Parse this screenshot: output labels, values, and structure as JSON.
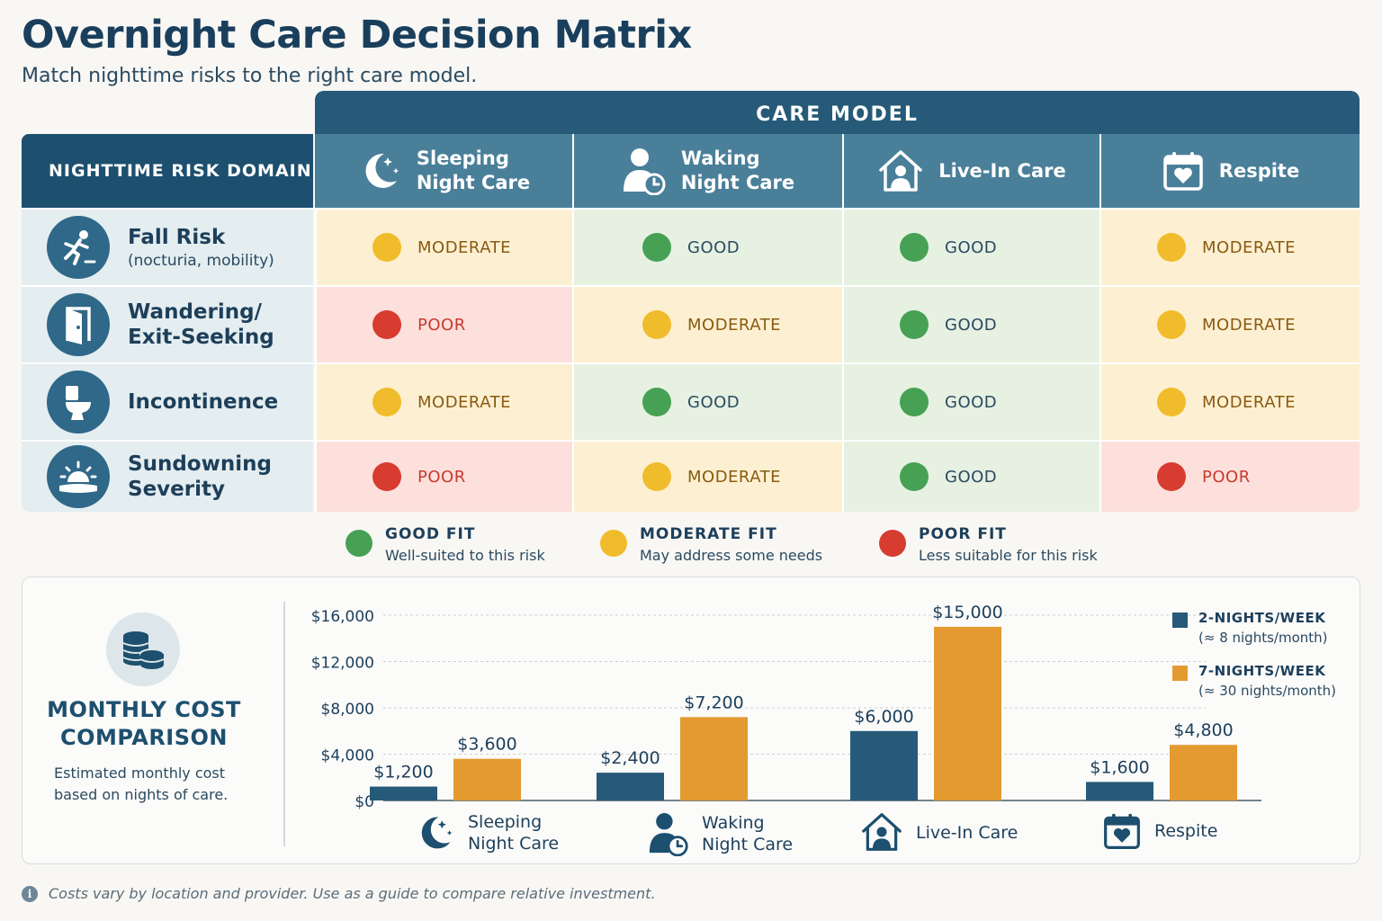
{
  "title": "Overnight Care Decision Matrix",
  "subtitle": "Match nighttime risks to the right care model.",
  "matrix": {
    "band_label": "CARE MODEL",
    "risk_header": "NIGHTTIME RISK DOMAIN",
    "models": [
      {
        "line1": "Sleeping",
        "line2": "Night Care",
        "icon": "moon-stars-icon"
      },
      {
        "line1": "Waking",
        "line2": "Night Care",
        "icon": "person-clock-icon"
      },
      {
        "line1": "Live-In Care",
        "line2": "",
        "icon": "house-person-icon"
      },
      {
        "line1": "Respite",
        "line2": "",
        "icon": "calendar-heart-icon"
      }
    ],
    "risks": [
      {
        "name": "Fall Risk",
        "sub": "(nocturia, mobility)",
        "icon": "falling-person-icon",
        "ratings": [
          "moderate",
          "good",
          "good",
          "moderate"
        ],
        "labels": [
          "MODERATE",
          "GOOD",
          "GOOD",
          "MODERATE"
        ]
      },
      {
        "name": "Wandering/",
        "name2": "Exit-Seeking",
        "sub": "",
        "icon": "door-icon",
        "ratings": [
          "poor",
          "moderate",
          "good",
          "moderate"
        ],
        "labels": [
          "POOR",
          "MODERATE",
          "GOOD",
          "MODERATE"
        ]
      },
      {
        "name": "Incontinence",
        "sub": "",
        "icon": "toilet-icon",
        "ratings": [
          "moderate",
          "good",
          "good",
          "moderate"
        ],
        "labels": [
          "MODERATE",
          "GOOD",
          "GOOD",
          "MODERATE"
        ]
      },
      {
        "name": "Sundowning",
        "name2": "Severity",
        "sub": "",
        "icon": "sunset-icon",
        "ratings": [
          "poor",
          "moderate",
          "good",
          "poor"
        ],
        "labels": [
          "POOR",
          "MODERATE",
          "GOOD",
          "POOR"
        ]
      }
    ]
  },
  "legend": [
    {
      "title": "GOOD FIT",
      "desc": "Well-suited to this risk",
      "color": "#47a154"
    },
    {
      "title": "MODERATE FIT",
      "desc": "May address some needs",
      "color": "#f1bc2b"
    },
    {
      "title": "POOR FIT",
      "desc": "Less suitable for this risk",
      "color": "#d63c2f"
    }
  ],
  "cost": {
    "title_line1": "MONTHLY COST",
    "title_line2": "COMPARISON",
    "desc": "Estimated monthly cost based on nights of care.",
    "icon": "coin-stack-icon"
  },
  "chart_data": {
    "type": "bar",
    "title": "MONTHLY COST COMPARISON",
    "categories": [
      "Sleeping Night Care",
      "Waking Night Care",
      "Live-In Care",
      "Respite"
    ],
    "series": [
      {
        "name": "2-NIGHTS/WEEK",
        "note": "(≈ 8 nights/month)",
        "color": "#265a78",
        "values": [
          1200,
          2400,
          6000,
          1600
        ],
        "labels": [
          "$1,200",
          "$2,400",
          "$6,000",
          "$1,600"
        ]
      },
      {
        "name": "7-NIGHTS/WEEK",
        "note": "(≈ 30 nights/month)",
        "color": "#e39a31",
        "values": [
          3600,
          7200,
          15000,
          4800
        ],
        "labels": [
          "$3,600",
          "$7,200",
          "$15,000",
          "$4,800"
        ]
      }
    ],
    "ylim": [
      0,
      16000
    ],
    "yticks": [
      0,
      4000,
      8000,
      12000,
      16000
    ],
    "ytick_labels": [
      "$0",
      "$4,000",
      "$8,000",
      "$12,000",
      "$16,000"
    ],
    "grid": true,
    "legend_position": "right"
  },
  "footnote": "Costs vary by location and provider. Use as a guide to compare relative investment."
}
